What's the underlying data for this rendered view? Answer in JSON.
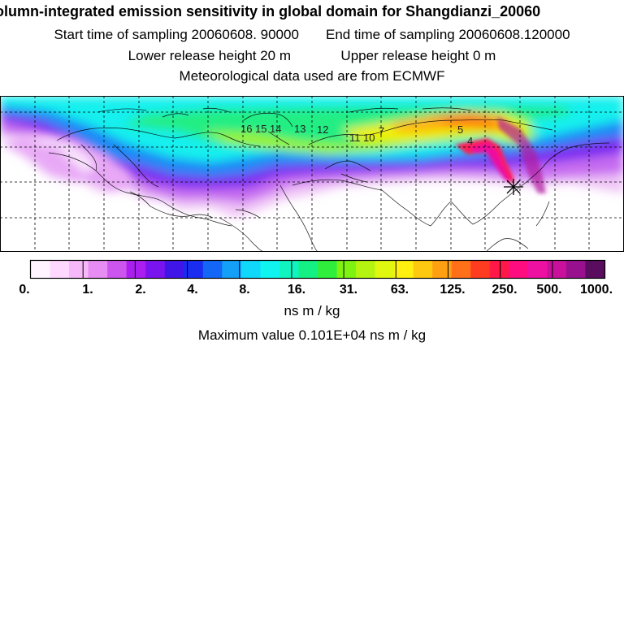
{
  "header": {
    "title": "olumn-integrated emission sensitivity in global domain for Shangdianzi_20060",
    "start_label": "Start time of sampling 20060608. 90000",
    "end_label": "End time of sampling 20060608.120000",
    "lower_label": "Lower release height   20 m",
    "upper_label": "Upper release height    0 m",
    "met_label": "Meteorological data used are from ECMWF"
  },
  "map": {
    "track_labels": [
      "16",
      "15",
      "14",
      "13",
      "12",
      "11",
      "10",
      "7",
      "5",
      "4"
    ],
    "receptor_marker": "asterisk"
  },
  "colorbar": {
    "tick_labels": [
      "0.",
      "1.",
      "2.",
      "4.",
      "8.",
      "16.",
      "31.",
      "63.",
      "125.",
      "250.",
      "500.",
      "1000."
    ],
    "colors": [
      "#fff4ff",
      "#ffd8ff",
      "#f6b8f8",
      "#e68cf2",
      "#cc55ee",
      "#aa1ff0",
      "#7a14ee",
      "#4016e8",
      "#1a2cf0",
      "#1466f6",
      "#14a0f8",
      "#10d8fa",
      "#10f4f0",
      "#10f4c0",
      "#14f084",
      "#30ee3c",
      "#7ef210",
      "#b4f410",
      "#e0f810",
      "#fff010",
      "#ffc810",
      "#ffa012",
      "#ff7018",
      "#ff3c20",
      "#ff1848",
      "#ff0c80",
      "#ee10a0",
      "#c8109a",
      "#98108e",
      "#5a0c5e"
    ],
    "units": "ns m / kg",
    "max_label": "Maximum value  0.101E+04 ns m / kg"
  }
}
